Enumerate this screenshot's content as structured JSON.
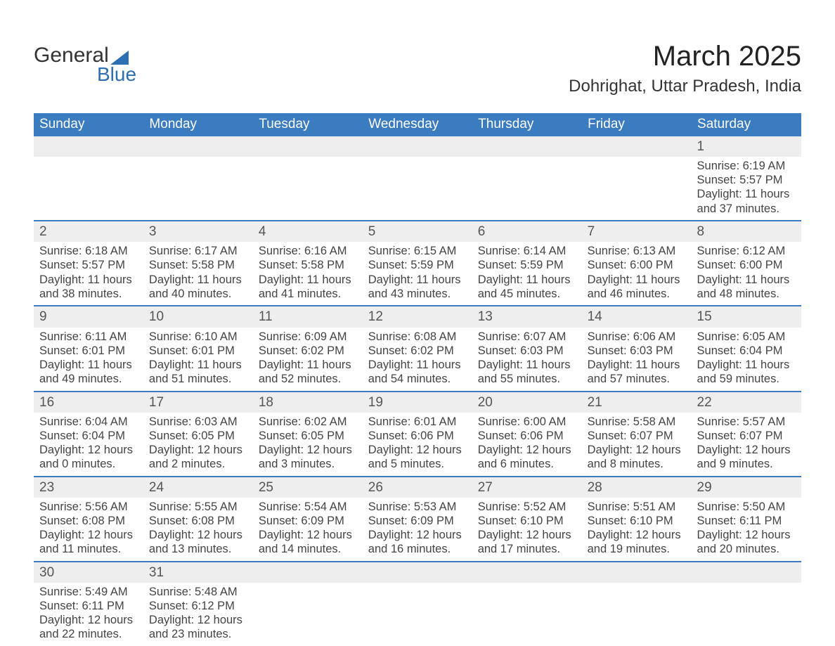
{
  "brand": {
    "text1": "General",
    "text2": "Blue",
    "accent": "#2d6fb3"
  },
  "title": "March 2025",
  "location": "Dohrighat, Uttar Pradesh, India",
  "weekday_headers": [
    "Sunday",
    "Monday",
    "Tuesday",
    "Wednesday",
    "Thursday",
    "Friday",
    "Saturday"
  ],
  "colors": {
    "header_bg": "#3b7bbf",
    "header_text": "#ffffff",
    "daynum_bg": "#eeeeee",
    "row_divider": "#3b7bbf",
    "body_text": "#444444",
    "page_bg": "#ffffff"
  },
  "weeks": [
    [
      null,
      null,
      null,
      null,
      null,
      null,
      {
        "n": "1",
        "sr": "Sunrise: 6:19 AM",
        "ss": "Sunset: 5:57 PM",
        "d1": "Daylight: 11 hours",
        "d2": "and 37 minutes."
      }
    ],
    [
      {
        "n": "2",
        "sr": "Sunrise: 6:18 AM",
        "ss": "Sunset: 5:57 PM",
        "d1": "Daylight: 11 hours",
        "d2": "and 38 minutes."
      },
      {
        "n": "3",
        "sr": "Sunrise: 6:17 AM",
        "ss": "Sunset: 5:58 PM",
        "d1": "Daylight: 11 hours",
        "d2": "and 40 minutes."
      },
      {
        "n": "4",
        "sr": "Sunrise: 6:16 AM",
        "ss": "Sunset: 5:58 PM",
        "d1": "Daylight: 11 hours",
        "d2": "and 41 minutes."
      },
      {
        "n": "5",
        "sr": "Sunrise: 6:15 AM",
        "ss": "Sunset: 5:59 PM",
        "d1": "Daylight: 11 hours",
        "d2": "and 43 minutes."
      },
      {
        "n": "6",
        "sr": "Sunrise: 6:14 AM",
        "ss": "Sunset: 5:59 PM",
        "d1": "Daylight: 11 hours",
        "d2": "and 45 minutes."
      },
      {
        "n": "7",
        "sr": "Sunrise: 6:13 AM",
        "ss": "Sunset: 6:00 PM",
        "d1": "Daylight: 11 hours",
        "d2": "and 46 minutes."
      },
      {
        "n": "8",
        "sr": "Sunrise: 6:12 AM",
        "ss": "Sunset: 6:00 PM",
        "d1": "Daylight: 11 hours",
        "d2": "and 48 minutes."
      }
    ],
    [
      {
        "n": "9",
        "sr": "Sunrise: 6:11 AM",
        "ss": "Sunset: 6:01 PM",
        "d1": "Daylight: 11 hours",
        "d2": "and 49 minutes."
      },
      {
        "n": "10",
        "sr": "Sunrise: 6:10 AM",
        "ss": "Sunset: 6:01 PM",
        "d1": "Daylight: 11 hours",
        "d2": "and 51 minutes."
      },
      {
        "n": "11",
        "sr": "Sunrise: 6:09 AM",
        "ss": "Sunset: 6:02 PM",
        "d1": "Daylight: 11 hours",
        "d2": "and 52 minutes."
      },
      {
        "n": "12",
        "sr": "Sunrise: 6:08 AM",
        "ss": "Sunset: 6:02 PM",
        "d1": "Daylight: 11 hours",
        "d2": "and 54 minutes."
      },
      {
        "n": "13",
        "sr": "Sunrise: 6:07 AM",
        "ss": "Sunset: 6:03 PM",
        "d1": "Daylight: 11 hours",
        "d2": "and 55 minutes."
      },
      {
        "n": "14",
        "sr": "Sunrise: 6:06 AM",
        "ss": "Sunset: 6:03 PM",
        "d1": "Daylight: 11 hours",
        "d2": "and 57 minutes."
      },
      {
        "n": "15",
        "sr": "Sunrise: 6:05 AM",
        "ss": "Sunset: 6:04 PM",
        "d1": "Daylight: 11 hours",
        "d2": "and 59 minutes."
      }
    ],
    [
      {
        "n": "16",
        "sr": "Sunrise: 6:04 AM",
        "ss": "Sunset: 6:04 PM",
        "d1": "Daylight: 12 hours",
        "d2": "and 0 minutes."
      },
      {
        "n": "17",
        "sr": "Sunrise: 6:03 AM",
        "ss": "Sunset: 6:05 PM",
        "d1": "Daylight: 12 hours",
        "d2": "and 2 minutes."
      },
      {
        "n": "18",
        "sr": "Sunrise: 6:02 AM",
        "ss": "Sunset: 6:05 PM",
        "d1": "Daylight: 12 hours",
        "d2": "and 3 minutes."
      },
      {
        "n": "19",
        "sr": "Sunrise: 6:01 AM",
        "ss": "Sunset: 6:06 PM",
        "d1": "Daylight: 12 hours",
        "d2": "and 5 minutes."
      },
      {
        "n": "20",
        "sr": "Sunrise: 6:00 AM",
        "ss": "Sunset: 6:06 PM",
        "d1": "Daylight: 12 hours",
        "d2": "and 6 minutes."
      },
      {
        "n": "21",
        "sr": "Sunrise: 5:58 AM",
        "ss": "Sunset: 6:07 PM",
        "d1": "Daylight: 12 hours",
        "d2": "and 8 minutes."
      },
      {
        "n": "22",
        "sr": "Sunrise: 5:57 AM",
        "ss": "Sunset: 6:07 PM",
        "d1": "Daylight: 12 hours",
        "d2": "and 9 minutes."
      }
    ],
    [
      {
        "n": "23",
        "sr": "Sunrise: 5:56 AM",
        "ss": "Sunset: 6:08 PM",
        "d1": "Daylight: 12 hours",
        "d2": "and 11 minutes."
      },
      {
        "n": "24",
        "sr": "Sunrise: 5:55 AM",
        "ss": "Sunset: 6:08 PM",
        "d1": "Daylight: 12 hours",
        "d2": "and 13 minutes."
      },
      {
        "n": "25",
        "sr": "Sunrise: 5:54 AM",
        "ss": "Sunset: 6:09 PM",
        "d1": "Daylight: 12 hours",
        "d2": "and 14 minutes."
      },
      {
        "n": "26",
        "sr": "Sunrise: 5:53 AM",
        "ss": "Sunset: 6:09 PM",
        "d1": "Daylight: 12 hours",
        "d2": "and 16 minutes."
      },
      {
        "n": "27",
        "sr": "Sunrise: 5:52 AM",
        "ss": "Sunset: 6:10 PM",
        "d1": "Daylight: 12 hours",
        "d2": "and 17 minutes."
      },
      {
        "n": "28",
        "sr": "Sunrise: 5:51 AM",
        "ss": "Sunset: 6:10 PM",
        "d1": "Daylight: 12 hours",
        "d2": "and 19 minutes."
      },
      {
        "n": "29",
        "sr": "Sunrise: 5:50 AM",
        "ss": "Sunset: 6:11 PM",
        "d1": "Daylight: 12 hours",
        "d2": "and 20 minutes."
      }
    ],
    [
      {
        "n": "30",
        "sr": "Sunrise: 5:49 AM",
        "ss": "Sunset: 6:11 PM",
        "d1": "Daylight: 12 hours",
        "d2": "and 22 minutes."
      },
      {
        "n": "31",
        "sr": "Sunrise: 5:48 AM",
        "ss": "Sunset: 6:12 PM",
        "d1": "Daylight: 12 hours",
        "d2": "and 23 minutes."
      },
      null,
      null,
      null,
      null,
      null
    ]
  ]
}
